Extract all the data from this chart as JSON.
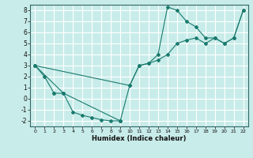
{
  "background_color": "#c8ece9",
  "grid_color": "#ffffff",
  "line_color": "#1a7a6e",
  "xlabel": "Humidex (Indice chaleur)",
  "xlim": [
    -0.5,
    22.5
  ],
  "ylim": [
    -2.5,
    8.5
  ],
  "xticks": [
    0,
    1,
    2,
    3,
    4,
    5,
    6,
    7,
    8,
    9,
    10,
    11,
    12,
    13,
    14,
    15,
    16,
    17,
    18,
    19,
    20,
    21,
    22
  ],
  "yticks": [
    -2,
    -1,
    0,
    1,
    2,
    3,
    4,
    5,
    6,
    7,
    8
  ],
  "lines": [
    {
      "comment": "Descending curve: (0,3)->(1,2)->(2,0.5)",
      "x": [
        0,
        1,
        2
      ],
      "y": [
        3,
        2,
        0.5
      ]
    },
    {
      "comment": "Bottom line: (2,0.5)->(3,0.5)->(4,-1.2)->(5,-1.5)->(6,-1.7)->(7,-1.9)->(8,-2.0)->(9,-2.0)",
      "x": [
        2,
        3,
        4,
        5,
        6,
        7,
        8,
        9
      ],
      "y": [
        0.5,
        0.5,
        -1.2,
        -1.5,
        -1.7,
        -1.9,
        -2.0,
        -2.0
      ]
    },
    {
      "comment": "Line from (0,3) to (9,-2) via (3,0.5)",
      "x": [
        0,
        3,
        9
      ],
      "y": [
        3,
        0.5,
        -2
      ]
    },
    {
      "comment": "Bounce line: (9,-2)->(10,1.2)->(11,3)->(12,3.2)->(13,3.5)->(14,4)->(15,5)->(16,5.3)->(17,5.5)->(18,5.0)->(19,5.5)->(20,5.0)->(21,5.5)->(22,8)",
      "x": [
        9,
        10,
        11,
        12,
        13,
        14,
        15,
        16,
        17,
        18,
        19,
        20,
        21,
        22
      ],
      "y": [
        -2,
        1.2,
        3.0,
        3.2,
        3.5,
        4.0,
        5.0,
        5.3,
        5.5,
        5.0,
        5.5,
        5.0,
        5.5,
        8.0
      ]
    },
    {
      "comment": "Peak line: (0,3)->(10,1.2)->(11,3)->(12,3.2)->(13,4.0)->(14,8.3)->(15,8.0)->(16,7.0)->(17,6.5)->(18,5.5)->(19,5.5)->(20,5.0)->(21,5.5)->(22,8)",
      "x": [
        0,
        10,
        11,
        12,
        13,
        14,
        15,
        16,
        17,
        18,
        19,
        20,
        21,
        22
      ],
      "y": [
        3,
        1.2,
        3.0,
        3.2,
        4.0,
        8.3,
        8.0,
        7.0,
        6.5,
        5.5,
        5.5,
        5.0,
        5.5,
        8.0
      ]
    }
  ]
}
